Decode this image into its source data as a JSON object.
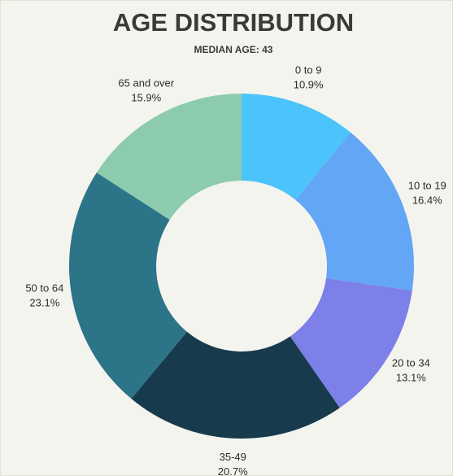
{
  "chart_data": {
    "type": "donut",
    "title": "AGE DISTRIBUTION",
    "subtitle": "MEDIAN AGE: 43",
    "categories": [
      "0 to 9",
      "10 to 19",
      "20 to 34",
      "35-49",
      "50 to 64",
      "65 and over"
    ],
    "values": [
      10.9,
      16.4,
      13.1,
      20.7,
      23.1,
      15.9
    ],
    "value_labels": [
      "10.9%",
      "16.4%",
      "13.1%",
      "20.7%",
      "23.1%",
      "15.9%"
    ],
    "colors": [
      "#4cc4fb",
      "#63a6f6",
      "#7d80e8",
      "#173a4d",
      "#2c7487",
      "#8dcbaf"
    ]
  }
}
